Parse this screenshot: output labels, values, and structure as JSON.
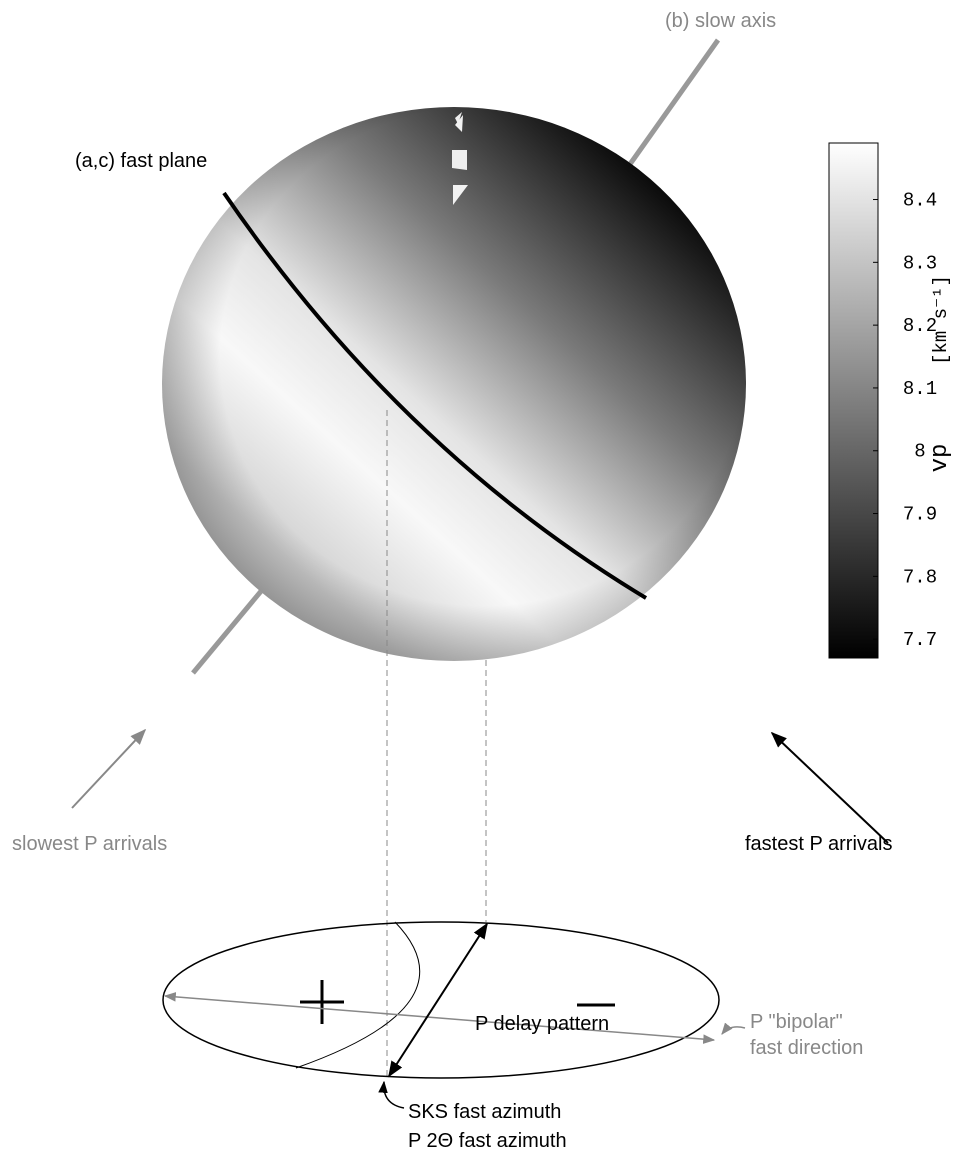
{
  "labels": {
    "slow_axis": "(b) slow axis",
    "fast_plane": "(a,c) fast plane",
    "slowest": "slowest P arrivals",
    "fastest": "fastest P arrivals",
    "delay_pattern": "P delay pattern",
    "bipolar_1": "P \"bipolar\"",
    "bipolar_2": "fast direction",
    "sks": "SKS fast azimuth",
    "p2theta": "P 2Θ  fast azimuth"
  },
  "colorbar": {
    "label": "vp",
    "unit": "[km s⁻¹]",
    "lim": [
      7.67,
      8.49
    ],
    "ticks": [
      8.4,
      8.3,
      8.2,
      8.1,
      8,
      7.9,
      7.8,
      7.7
    ]
  }
}
